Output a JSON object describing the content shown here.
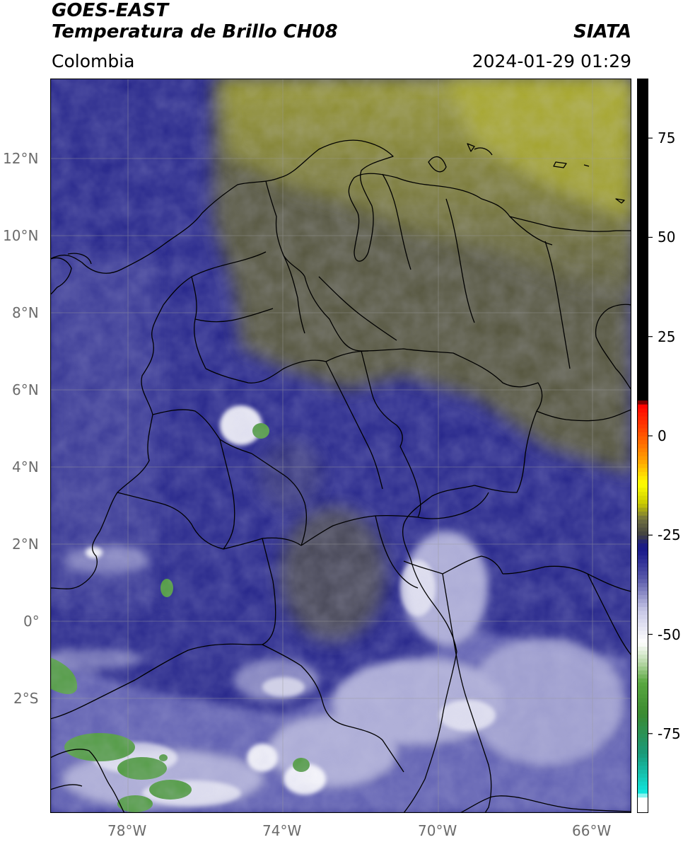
{
  "header": {
    "satellite": "GOES-EAST",
    "product": "Temperatura de Brillo CH08",
    "region": "Colombia",
    "agency": "SIATA",
    "timestamp": "2024-01-29 01:29"
  },
  "map_axes": {
    "lat_labels": [
      "12°N",
      "10°N",
      "8°N",
      "6°N",
      "4°N",
      "2°N",
      "0°",
      "2°S"
    ],
    "lat_values": [
      12,
      10,
      8,
      6,
      4,
      2,
      0,
      -2
    ],
    "lon_labels": [
      "78°W",
      "74°W",
      "70°W",
      "66°W"
    ],
    "lon_values": [
      -78,
      -74,
      -70,
      -66
    ],
    "lat_range": [
      -5.0,
      14.0
    ],
    "lon_range": [
      -80.0,
      -65.0
    ],
    "grid": true
  },
  "colorbar": {
    "tick_labels": [
      "75",
      "50",
      "25",
      "0",
      "-25",
      "-50",
      "-75"
    ],
    "tick_values": [
      75,
      50,
      25,
      0,
      -25,
      -50,
      -75
    ],
    "range": [
      -95,
      90
    ],
    "stops": [
      {
        "v": -95,
        "c": "#ffffff"
      },
      {
        "v": -91,
        "c": "#ffffff"
      },
      {
        "v": -90,
        "c": "#10e8e0"
      },
      {
        "v": -80,
        "c": "#1a9a7a"
      },
      {
        "v": -70,
        "c": "#3a8a30"
      },
      {
        "v": -62,
        "c": "#5aa840"
      },
      {
        "v": -57,
        "c": "#b8d8a8"
      },
      {
        "v": -52,
        "c": "#ffffff"
      },
      {
        "v": -44,
        "c": "#c8c8e6"
      },
      {
        "v": -36,
        "c": "#5a5aaa"
      },
      {
        "v": -29,
        "c": "#1a1a8c"
      },
      {
        "v": -27,
        "c": "#1e1e80"
      },
      {
        "v": -25,
        "c": "#404040"
      },
      {
        "v": -21,
        "c": "#6e6e40"
      },
      {
        "v": -17,
        "c": "#c8c800"
      },
      {
        "v": -12,
        "c": "#ffff00"
      },
      {
        "v": -6,
        "c": "#ffa000"
      },
      {
        "v": 2,
        "c": "#ff4000"
      },
      {
        "v": 8,
        "c": "#ff0000"
      },
      {
        "v": 9,
        "c": "#000000"
      },
      {
        "v": 90,
        "c": "#000000"
      }
    ]
  },
  "colors": {
    "ocean_pacific": "#2a2a8e",
    "land_cloud_deep": "#1e1e84",
    "caribbean_haze": "#8a8a30",
    "dry_air_olive": "#56563e",
    "cold_cloud_light": "#c6c6e2",
    "very_cold_green": "#4e9a3e",
    "border": "#000000",
    "grid": "#9a9a9a"
  }
}
